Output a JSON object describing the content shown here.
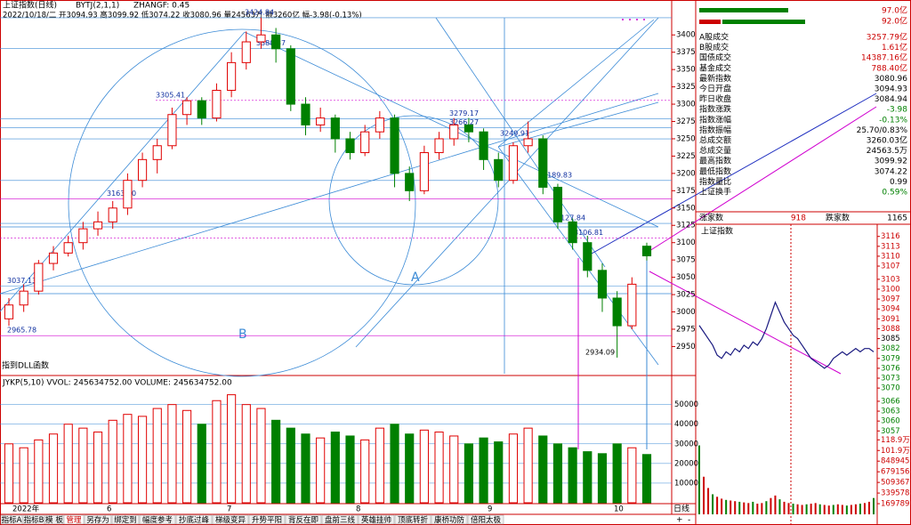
{
  "header": {
    "title": "上证指数(日线)",
    "indicator": "BYTJ(2,1,1)",
    "param": "ZHANGF: 0.45",
    "ohlc": "2022/10/18/二 开3094.93 高3099.92 低3074.22 收3080.96 量24563万 额3260亿 幅-3.98(-0.13%)",
    "dll": "指到DLL函数",
    "markA": "A",
    "markB": "B"
  },
  "chart_data": {
    "type": "candlestick",
    "ylim": [
      2930,
      3435
    ],
    "yticks": [
      2950,
      2975,
      3000,
      3025,
      3050,
      3075,
      3100,
      3125,
      3150,
      3175,
      3200,
      3225,
      3250,
      3275,
      3300,
      3325,
      3350,
      3375,
      3400
    ],
    "xlabels": [
      "2022年",
      "6",
      "7",
      "8",
      "9",
      "10"
    ],
    "candles": {
      "open": [
        2990,
        3010,
        3030,
        3070,
        3085,
        3100,
        3120,
        3130,
        3150,
        3190,
        3220,
        3240,
        3285,
        3305,
        3280,
        3320,
        3360,
        3390,
        3400,
        3380,
        3300,
        3270,
        3280,
        3250,
        3230,
        3260,
        3280,
        3200,
        3175,
        3230,
        3250,
        3270,
        3260,
        3220,
        3190,
        3240,
        3250,
        3180,
        3130,
        3100,
        3060,
        3020,
        2980,
        3094.93
      ],
      "high": [
        3020,
        3040,
        3075,
        3095,
        3110,
        3130,
        3145,
        3160,
        3200,
        3230,
        3250,
        3295,
        3310,
        3310,
        3330,
        3375,
        3405,
        3425,
        3410,
        3385,
        3310,
        3295,
        3285,
        3260,
        3270,
        3290,
        3285,
        3210,
        3240,
        3260,
        3280,
        3280,
        3265,
        3230,
        3245,
        3275,
        3255,
        3185,
        3135,
        3110,
        3070,
        3030,
        3050,
        3099.92
      ],
      "low": [
        2980,
        3000,
        3025,
        3060,
        3080,
        3090,
        3110,
        3120,
        3140,
        3180,
        3200,
        3235,
        3270,
        3270,
        3275,
        3310,
        3350,
        3380,
        3360,
        3290,
        3255,
        3260,
        3230,
        3220,
        3225,
        3250,
        3180,
        3160,
        3170,
        3220,
        3240,
        3245,
        3205,
        3180,
        3185,
        3230,
        3170,
        3120,
        3090,
        3050,
        3000,
        2934,
        2975,
        3074.22
      ],
      "close": [
        3010,
        3030,
        3070,
        3085,
        3100,
        3120,
        3130,
        3150,
        3190,
        3220,
        3240,
        3285,
        3305,
        3280,
        3320,
        3360,
        3390,
        3400,
        3380,
        3300,
        3270,
        3280,
        3250,
        3230,
        3260,
        3280,
        3200,
        3175,
        3230,
        3250,
        3270,
        3260,
        3220,
        3190,
        3240,
        3250,
        3180,
        3130,
        3100,
        3060,
        3020,
        2980,
        3040,
        3080.96
      ]
    },
    "levels": [
      3424.84,
      3380.37,
      3305.41,
      3279.17,
      3266.27,
      3249.91,
      3189.83,
      {
        "value": 3163,
        "label": "3163.00"
      },
      3127.84,
      3106.81,
      3037.13,
      2965.78,
      2934.09
    ],
    "volume": {
      "title": "JYKP(5,10)  VVOL: 245634752.00  VOLUME: 245634752.00",
      "ylim": [
        0,
        58000
      ],
      "yticks": [
        10000,
        20000,
        30000,
        40000,
        50000
      ],
      "values": [
        30000,
        28000,
        32000,
        35000,
        40000,
        38000,
        36000,
        42000,
        45000,
        44000,
        48000,
        50000,
        47000,
        40000,
        52000,
        55000,
        50000,
        48000,
        42000,
        38000,
        35000,
        33000,
        36000,
        34000,
        32000,
        38000,
        40000,
        35000,
        37000,
        36000,
        34000,
        30000,
        33000,
        31000,
        35000,
        38000,
        34000,
        30000,
        28000,
        26000,
        25000,
        30000,
        28000,
        24564
      ]
    },
    "period": "日线"
  },
  "side": {
    "bars": [
      "97.0亿",
      "92.0亿"
    ],
    "rows": [
      [
        "A股成交",
        "3257.79亿"
      ],
      [
        "B股成交",
        "1.61亿"
      ],
      [
        "国债成交",
        "14387.16亿"
      ],
      [
        "基金成交",
        "788.40亿"
      ],
      [
        "最新指数",
        "3080.96"
      ],
      [
        "今日开盘",
        "3094.93"
      ],
      [
        "昨日收盘",
        "3084.94"
      ],
      [
        "指数涨跌",
        "-3.98"
      ],
      [
        "指数涨幅",
        "-0.13%"
      ],
      [
        "指数振幅",
        "25.70/0.83%"
      ],
      [
        "总成交额",
        "3260.03亿"
      ],
      [
        "总成交量",
        "24563.5万"
      ],
      [
        "最高指数",
        "3099.92"
      ],
      [
        "最低指数",
        "3074.22"
      ],
      [
        "指数量比",
        "0.99"
      ],
      [
        "上证换手",
        "0.59%"
      ]
    ],
    "breadth": [
      "涨家数",
      "918",
      "跌家数",
      "1165"
    ],
    "intraday": {
      "title": "上证指数",
      "ylim": [
        3056,
        3117
      ],
      "yticks": [
        3116,
        3113,
        3110,
        3107,
        3103,
        3100,
        3097,
        3094,
        3091,
        3088,
        3085,
        3082,
        3079,
        3076,
        3073,
        3070,
        3066,
        3063,
        3060,
        3057
      ],
      "values": [
        3089,
        3087,
        3085,
        3083,
        3080,
        3079,
        3081,
        3080,
        3082,
        3081,
        3083,
        3082,
        3084,
        3083,
        3085,
        3088,
        3092,
        3096,
        3093,
        3090,
        3088,
        3086,
        3085,
        3083,
        3081,
        3079,
        3078,
        3077,
        3076,
        3077,
        3079,
        3080,
        3081,
        3080,
        3081,
        3082,
        3081,
        3082,
        3082,
        3081
      ],
      "vlim": [
        0,
        1250000
      ],
      "vticks": [
        {
          "value": 1189000,
          "label": "118.9万"
        },
        {
          "value": 1019000,
          "label": "101.9万"
        },
        848945,
        679156,
        509367,
        339578,
        169789
      ],
      "volume": [
        1100000,
        600000,
        420000,
        320000,
        280000,
        250000,
        230000,
        220000,
        210000,
        200000,
        190000,
        180000,
        200000,
        170000,
        180000,
        210000,
        260000,
        300000,
        240000,
        200000,
        180000,
        170000,
        160000,
        150000,
        160000,
        170000,
        180000,
        160000,
        150000,
        140000,
        150000,
        160000,
        150000,
        140000,
        150000,
        160000,
        170000,
        180000,
        200000,
        260000
      ]
    }
  },
  "toolbar": [
    "指标A",
    "指标B",
    "模 板",
    "管理",
    "另存为",
    "绑定到",
    "幅度参考",
    "抄底过峰",
    "梯级变异",
    "升势平阳",
    "背反在即",
    "盘前三线",
    "英雄挂帅",
    "顶底转折",
    "康桥功防",
    "倍阳太极"
  ],
  "zoom": [
    "+",
    "-"
  ]
}
